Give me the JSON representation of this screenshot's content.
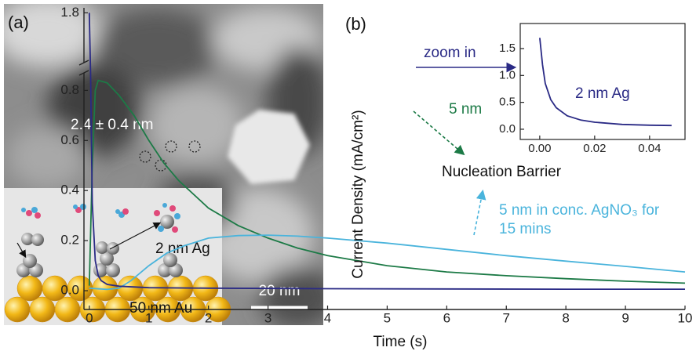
{
  "panel_a": {
    "label": "(a)",
    "size_label": "2.4 ± 0.4 nm",
    "scale_bar": "20 nm",
    "inset_labels": [
      "2 nm Ag",
      "50 nm Au"
    ]
  },
  "chart_data": [
    {
      "type": "line",
      "label": "(b)",
      "xlabel": "Time (s)",
      "ylabel": "Current Density (mA/cm²)",
      "xlim": [
        -0.09,
        10
      ],
      "xticks": [
        0,
        1,
        2,
        3,
        4,
        5,
        6,
        7,
        8,
        9,
        10
      ],
      "ylim": [
        -0.075,
        1.82
      ],
      "ybreak": [
        0.87,
        1.6
      ],
      "yticks": [
        {
          "value": 0,
          "label": "0.0"
        },
        0.2,
        0.4,
        0.6,
        0.8,
        1.8
      ],
      "annotations": [
        "Nucleation Barrier",
        "zoom in"
      ],
      "series": [
        {
          "name": "5 nm",
          "color": "#1c7a46",
          "x": [
            0,
            0.05,
            0.1,
            0.15,
            0.3,
            0.5,
            0.75,
            1,
            1.25,
            1.5,
            2,
            2.5,
            3,
            3.5,
            4,
            5,
            6,
            7,
            8,
            9,
            10
          ],
          "values": [
            0.02,
            0.5,
            0.8,
            0.84,
            0.83,
            0.78,
            0.7,
            0.6,
            0.51,
            0.44,
            0.33,
            0.26,
            0.21,
            0.17,
            0.14,
            0.1,
            0.075,
            0.06,
            0.048,
            0.038,
            0.03
          ]
        },
        {
          "name": "5 nm in conc. AgNO₃ for 15 mins",
          "color": "#4ab4dc",
          "x": [
            0,
            0.3,
            0.5,
            0.7,
            1,
            1.3,
            1.6,
            2,
            2.5,
            3,
            3.5,
            4,
            5,
            6,
            7,
            8,
            9,
            10
          ],
          "values": [
            0.01,
            0.005,
            0.01,
            0.04,
            0.1,
            0.15,
            0.18,
            0.21,
            0.22,
            0.222,
            0.218,
            0.21,
            0.19,
            0.165,
            0.14,
            0.118,
            0.097,
            0.075
          ]
        },
        {
          "color": "#2a2a85",
          "x": [
            0,
            0.02,
            0.05,
            0.1,
            0.15,
            0.2,
            0.3,
            0.5,
            1,
            2,
            4,
            6,
            8,
            10
          ],
          "values": [
            1.8,
            0.9,
            0.35,
            0.12,
            0.06,
            0.04,
            0.025,
            0.018,
            0.012,
            0.01,
            0.008,
            0.007,
            0.006,
            0.006
          ]
        }
      ]
    },
    {
      "type": "line",
      "xlim": [
        -0.0071,
        0.0529
      ],
      "xticks": [
        {
          "value": 0,
          "label": "0.00"
        },
        {
          "value": 0.02,
          "label": "0.02"
        },
        {
          "value": 0.04,
          "label": "0.04"
        }
      ],
      "ylim": [
        -0.19,
        1.966
      ],
      "yticks": [
        {
          "value": 0,
          "label": "0.0"
        },
        0.5,
        {
          "value": 1,
          "label": "1.0"
        },
        1.5
      ],
      "series": [
        {
          "name": "2 nm Ag",
          "color": "#2a2a85",
          "x": [
            0,
            0.001,
            0.002,
            0.004,
            0.006,
            0.01,
            0.015,
            0.02,
            0.03,
            0.04,
            0.048
          ],
          "values": [
            1.7,
            1.2,
            0.85,
            0.55,
            0.4,
            0.25,
            0.17,
            0.13,
            0.09,
            0.075,
            0.07
          ]
        }
      ]
    }
  ]
}
